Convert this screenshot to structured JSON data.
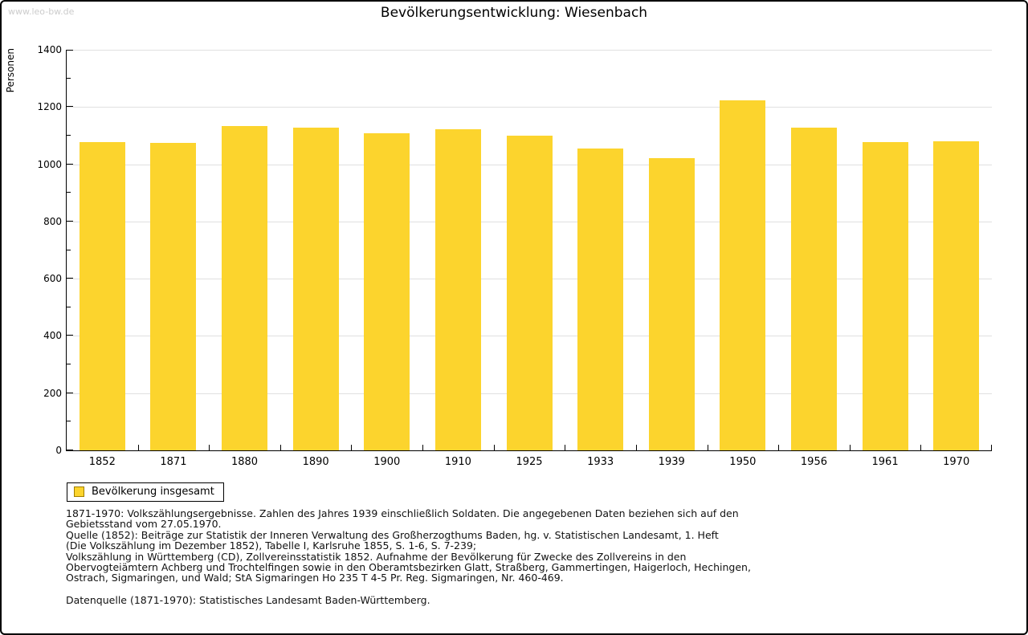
{
  "watermark": "www.leo-bw.de",
  "header": {
    "title": "Bevölkerungsentwicklung: Wiesenbach"
  },
  "chart_data": {
    "type": "bar",
    "title": "Bevölkerungsentwicklung: Wiesenbach",
    "xlabel": "",
    "ylabel": "Personen",
    "categories": [
      "1852",
      "1871",
      "1880",
      "1890",
      "1900",
      "1910",
      "1925",
      "1933",
      "1939",
      "1950",
      "1956",
      "1961",
      "1970"
    ],
    "values": [
      1078,
      1075,
      1134,
      1129,
      1107,
      1123,
      1101,
      1055,
      1021,
      1224,
      1128,
      1076,
      1080
    ],
    "ylim": [
      0,
      1400
    ],
    "ytick_major_step": 200,
    "ytick_minor_step": 100,
    "grid": true,
    "bar_color": "#FCD42D",
    "bar_border_color": "#a07d00",
    "legend_position": "bottom-left"
  },
  "legend": {
    "label": "Bevölkerung insgesamt",
    "swatch_color": "#FCD42D"
  },
  "footnotes": {
    "lines": [
      "1871-1970: Volkszählungsergebnisse. Zahlen des Jahres 1939 einschließlich Soldaten. Die angegebenen Daten beziehen sich auf den",
      "Gebietsstand vom 27.05.1970.",
      "Quelle (1852): Beiträge zur Statistik der Inneren Verwaltung des Großherzogthums Baden, hg. v. Statistischen Landesamt, 1. Heft",
      "(Die Volkszählung im Dezember 1852), Tabelle I, Karlsruhe 1855, S. 1-6, S. 7-239;",
      "Volkszählung in Württemberg (CD), Zollvereinsstatistik 1852. Aufnahme der Bevölkerung für Zwecke des Zollvereins in den",
      "Obervogteiämtern Achberg und Trochtelfingen sowie in den Oberamtsbezirken Glatt, Straßberg, Gammertingen, Haigerloch, Hechingen,",
      "Ostrach, Sigmaringen, und Wald; StA Sigmaringen Ho 235 T 4-5 Pr. Reg. Sigmaringen, Nr. 460-469."
    ],
    "source": "Datenquelle (1871-1970): Statistisches Landesamt Baden-Württemberg."
  }
}
